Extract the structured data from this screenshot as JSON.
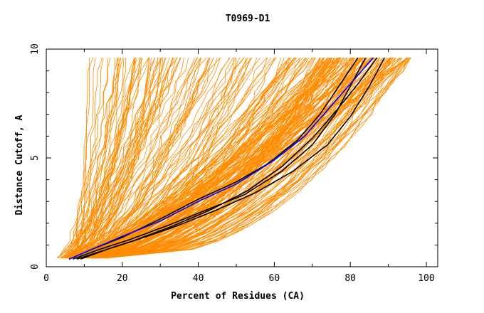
{
  "chart_data": {
    "type": "line",
    "title": "T0969-D1",
    "xlabel": "Percent of Residues (CA)",
    "ylabel": "Distance Cutoff, A",
    "xlim": [
      0,
      103
    ],
    "ylim": [
      0,
      10
    ],
    "xticks": [
      0,
      20,
      40,
      60,
      80,
      100
    ],
    "yticks": [
      0,
      5,
      10
    ],
    "x_minor_step": 10,
    "y_minor_step": 1,
    "colors": {
      "background_models": "#ff8c00",
      "highlight_black": "#000000",
      "highlight_blue": "#0000ff"
    },
    "background_groups": [
      {
        "name": "steep-group",
        "count": 60,
        "x_at_0_4": [
          2.5,
          9
        ],
        "x_at_9_6": [
          11,
          40
        ]
      },
      {
        "name": "middle-group",
        "count": 70,
        "x_at_0_4": [
          4,
          12
        ],
        "x_at_9_6": [
          40,
          78
        ]
      },
      {
        "name": "main-group",
        "count": 130,
        "x_at_0_4": [
          5,
          16
        ],
        "x_at_9_6": [
          72,
          97
        ]
      }
    ],
    "series": [
      {
        "name": "black-1",
        "color": "#000000",
        "points": [
          [
            6,
            0.35
          ],
          [
            12,
            0.8
          ],
          [
            20,
            1.35
          ],
          [
            30,
            2.2
          ],
          [
            40,
            3.1
          ],
          [
            50,
            3.9
          ],
          [
            58,
            4.7
          ],
          [
            66,
            5.8
          ],
          [
            72,
            7.0
          ],
          [
            77,
            8.3
          ],
          [
            82,
            9.6
          ]
        ]
      },
      {
        "name": "black-2",
        "color": "#000000",
        "points": [
          [
            7,
            0.35
          ],
          [
            14,
            0.8
          ],
          [
            22,
            1.25
          ],
          [
            32,
            1.9
          ],
          [
            42,
            2.6
          ],
          [
            52,
            3.3
          ],
          [
            62,
            4.4
          ],
          [
            70,
            5.6
          ],
          [
            76,
            7.0
          ],
          [
            80,
            8.3
          ],
          [
            84,
            9.6
          ]
        ]
      },
      {
        "name": "black-3",
        "color": "#000000",
        "points": [
          [
            9,
            0.35
          ],
          [
            16,
            0.8
          ],
          [
            24,
            1.25
          ],
          [
            34,
            1.85
          ],
          [
            44,
            2.55
          ],
          [
            55,
            3.4
          ],
          [
            65,
            4.4
          ],
          [
            74,
            5.6
          ],
          [
            80,
            6.9
          ],
          [
            85,
            8.3
          ],
          [
            89,
            9.6
          ]
        ]
      },
      {
        "name": "black-4",
        "color": "#000000",
        "points": [
          [
            8,
            0.35
          ],
          [
            15,
            0.75
          ],
          [
            23,
            1.2
          ],
          [
            33,
            1.85
          ],
          [
            43,
            2.6
          ],
          [
            53,
            3.5
          ],
          [
            62,
            4.6
          ],
          [
            70,
            5.9
          ],
          [
            76,
            7.1
          ],
          [
            82,
            8.4
          ],
          [
            87,
            9.6
          ]
        ]
      },
      {
        "name": "blue-1",
        "color": "#0000ff",
        "points": [
          [
            6,
            0.35
          ],
          [
            12,
            0.8
          ],
          [
            20,
            1.4
          ],
          [
            30,
            2.1
          ],
          [
            40,
            3.0
          ],
          [
            50,
            3.8
          ],
          [
            60,
            4.9
          ],
          [
            68,
            6.0
          ],
          [
            74,
            7.2
          ],
          [
            80,
            8.4
          ],
          [
            86,
            9.6
          ]
        ]
      }
    ]
  }
}
